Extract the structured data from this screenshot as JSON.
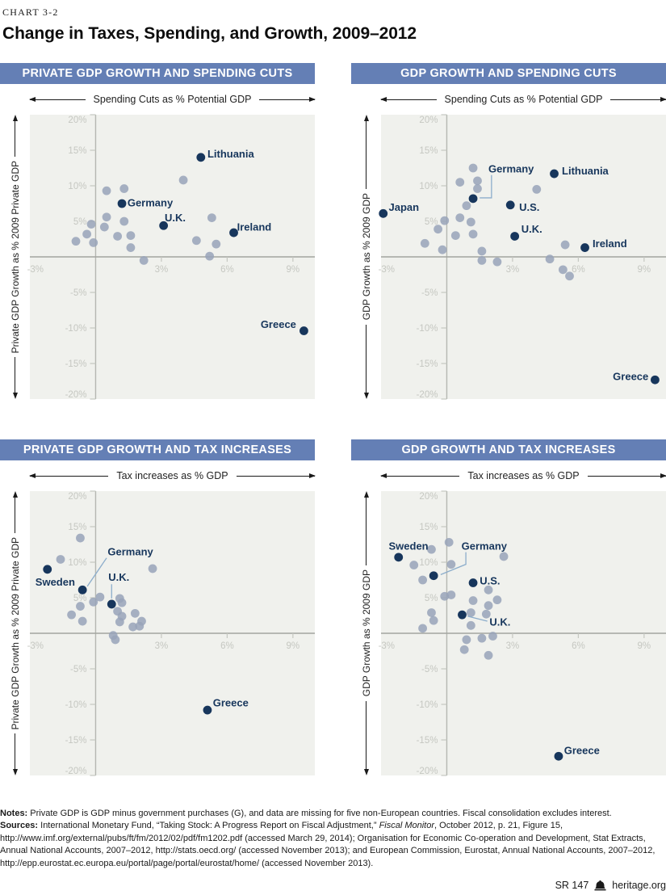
{
  "page": {
    "kicker": "CHART 3-2",
    "title": "Change in Taxes, Spending, and Growth, 2009–2012"
  },
  "colors": {
    "banner_blue": "#647fb5",
    "navy_point": "#17365c",
    "gray_point": "#98a3b8",
    "panel_bg": "#f0f1ed",
    "tick_label": "#c5c7c1",
    "x_axis_line": "#a3a5a0",
    "y_axis_line": "#b5b7b1",
    "leader_line": "#8cadcb",
    "arrow_black": "#1a1a1a"
  },
  "chart_data": [
    {
      "type": "scatter",
      "title": "PRIVATE GDP GROWTH AND SPENDING CUTS",
      "xlabel": "Spending Cuts as % Potential GDP",
      "ylabel": "Private GDP Growth as % 2009 Private GDP",
      "xlim": [
        -3,
        10
      ],
      "ylim": [
        -20,
        20
      ],
      "xticks": [
        {
          "v": -2.75,
          "label": "-3%",
          "tick": false
        },
        {
          "v": 3,
          "label": "3%",
          "tick": true
        },
        {
          "v": 6,
          "label": "6%",
          "tick": true
        },
        {
          "v": 9,
          "label": "9%",
          "tick": true
        }
      ],
      "yticks": [
        {
          "v": 20,
          "label": "20%"
        },
        {
          "v": 15,
          "label": "15%"
        },
        {
          "v": 10,
          "label": "10%"
        },
        {
          "v": 5,
          "label": "5%"
        },
        {
          "v": -5,
          "label": "-5%"
        },
        {
          "v": -10,
          "label": "-10%"
        },
        {
          "v": -15,
          "label": "-15%"
        },
        {
          "v": -20,
          "label": "-20%"
        }
      ],
      "labeled_points": [
        {
          "name": "Germany",
          "x": 1.2,
          "y": 7.5,
          "label_x": 1.45,
          "label_y": 7.6,
          "anchor": "start",
          "leader": null
        },
        {
          "name": "U.K.",
          "x": 3.1,
          "y": 4.4,
          "label_x": 3.15,
          "label_y": 5.5,
          "anchor": "start",
          "leader": null
        },
        {
          "name": "Lithuania",
          "x": 4.8,
          "y": 14.0,
          "label_x": 5.1,
          "label_y": 14.5,
          "anchor": "start",
          "leader": null
        },
        {
          "name": "Ireland",
          "x": 6.3,
          "y": 3.4,
          "label_x": 6.45,
          "label_y": 4.2,
          "anchor": "start",
          "leader": null
        },
        {
          "name": "Greece",
          "x": 9.5,
          "y": -10.4,
          "label_x": 9.15,
          "label_y": -9.5,
          "anchor": "end",
          "leader": null
        }
      ],
      "points": [
        [
          -0.9,
          2.2
        ],
        [
          -0.4,
          3.2
        ],
        [
          -0.2,
          4.6
        ],
        [
          -0.1,
          2.0
        ],
        [
          0.4,
          4.2
        ],
        [
          0.5,
          5.6
        ],
        [
          0.5,
          9.3
        ],
        [
          1.0,
          2.9
        ],
        [
          1.3,
          5.0
        ],
        [
          1.3,
          9.6
        ],
        [
          1.6,
          3.0
        ],
        [
          1.6,
          1.3
        ],
        [
          2.2,
          -0.5
        ],
        [
          4.0,
          10.8
        ],
        [
          4.6,
          2.3
        ],
        [
          5.2,
          0.1
        ],
        [
          5.3,
          5.5
        ],
        [
          5.5,
          1.8
        ]
      ]
    },
    {
      "type": "scatter",
      "title": "GDP GROWTH AND SPENDING CUTS",
      "xlabel": "Spending Cuts as % Potential GDP",
      "ylabel": "GDP Growth as % 2009 GDP",
      "xlim": [
        -3,
        10
      ],
      "ylim": [
        -20,
        20
      ],
      "xticks": [
        {
          "v": -2.75,
          "label": "-3%",
          "tick": false
        },
        {
          "v": 3,
          "label": "3%",
          "tick": true
        },
        {
          "v": 6,
          "label": "6%",
          "tick": true
        },
        {
          "v": 9,
          "label": "9%",
          "tick": true
        }
      ],
      "yticks": [
        {
          "v": 20,
          "label": "20%"
        },
        {
          "v": 15,
          "label": "15%"
        },
        {
          "v": 10,
          "label": "10%"
        },
        {
          "v": 5,
          "label": "5%"
        },
        {
          "v": -5,
          "label": "-5%"
        },
        {
          "v": -10,
          "label": "-10%"
        },
        {
          "v": -15,
          "label": "-15%"
        },
        {
          "v": -20,
          "label": "-20%"
        }
      ],
      "labeled_points": [
        {
          "name": "Japan",
          "x": -2.9,
          "y": 6.1,
          "label_x": -2.65,
          "label_y": 7.0,
          "anchor": "start",
          "leader": null
        },
        {
          "name": "Germany",
          "x": 1.2,
          "y": 8.2,
          "label_x": 1.9,
          "label_y": 12.4,
          "anchor": "start",
          "leader": [
            [
              2.04,
              11.5
            ],
            [
              2.04,
              8.3
            ],
            [
              1.5,
              8.3
            ]
          ]
        },
        {
          "name": "Lithuania",
          "x": 4.9,
          "y": 11.7,
          "label_x": 5.25,
          "label_y": 12.1,
          "anchor": "start",
          "leader": null
        },
        {
          "name": "U.S.",
          "x": 2.9,
          "y": 7.3,
          "label_x": 3.3,
          "label_y": 7.0,
          "anchor": "start",
          "leader": null
        },
        {
          "name": "U.K.",
          "x": 3.1,
          "y": 2.9,
          "label_x": 3.4,
          "label_y": 3.9,
          "anchor": "start",
          "leader": null
        },
        {
          "name": "Ireland",
          "x": 6.3,
          "y": 1.3,
          "label_x": 6.65,
          "label_y": 1.9,
          "anchor": "start",
          "leader": null
        },
        {
          "name": "Greece",
          "x": 9.5,
          "y": -17.3,
          "label_x": 9.2,
          "label_y": -16.8,
          "anchor": "end",
          "leader": null
        }
      ],
      "points": [
        [
          -1.0,
          1.9
        ],
        [
          -0.4,
          3.9
        ],
        [
          -0.2,
          1.0
        ],
        [
          -0.1,
          5.1
        ],
        [
          0.4,
          3.0
        ],
        [
          0.6,
          5.5
        ],
        [
          0.6,
          10.5
        ],
        [
          0.9,
          7.2
        ],
        [
          1.1,
          4.9
        ],
        [
          1.2,
          3.2
        ],
        [
          1.2,
          12.5
        ],
        [
          1.4,
          10.7
        ],
        [
          1.4,
          9.6
        ],
        [
          1.6,
          0.8
        ],
        [
          1.6,
          -0.5
        ],
        [
          2.3,
          -0.7
        ],
        [
          4.1,
          9.5
        ],
        [
          4.7,
          -0.3
        ],
        [
          5.4,
          1.7
        ],
        [
          5.3,
          -1.8
        ],
        [
          5.6,
          -2.7
        ]
      ]
    },
    {
      "type": "scatter",
      "title": "PRIVATE GDP GROWTH AND TAX INCREASES",
      "xlabel": "Tax increases as % GDP",
      "ylabel": "Private GDP Growth as % 2009 Private GDP",
      "xlim": [
        -3,
        10
      ],
      "ylim": [
        -20,
        20
      ],
      "xticks": [
        {
          "v": -2.75,
          "label": "-3%",
          "tick": false
        },
        {
          "v": 3,
          "label": "3%",
          "tick": true
        },
        {
          "v": 6,
          "label": "6%",
          "tick": true
        },
        {
          "v": 9,
          "label": "9%",
          "tick": true
        }
      ],
      "yticks": [
        {
          "v": 20,
          "label": "20%"
        },
        {
          "v": 15,
          "label": "15%"
        },
        {
          "v": 10,
          "label": "10%"
        },
        {
          "v": 5,
          "label": "5%"
        },
        {
          "v": -5,
          "label": "-5%"
        },
        {
          "v": -10,
          "label": "-10%"
        },
        {
          "v": -15,
          "label": "-15%"
        },
        {
          "v": -20,
          "label": "-20%"
        }
      ],
      "labeled_points": [
        {
          "name": "Sweden",
          "x": -2.2,
          "y": 9.0,
          "label_x": -2.75,
          "label_y": 7.2,
          "anchor": "start",
          "leader": null
        },
        {
          "name": "Germany",
          "x": -0.6,
          "y": 6.1,
          "label_x": 0.55,
          "label_y": 11.5,
          "anchor": "start",
          "leader": [
            [
              0.5,
              10.6
            ],
            [
              -0.38,
              6.6
            ]
          ]
        },
        {
          "name": "U.K.",
          "x": 0.73,
          "y": 4.1,
          "label_x": 0.58,
          "label_y": 7.9,
          "anchor": "start",
          "leader": [
            [
              0.73,
              6.9
            ],
            [
              0.73,
              4.9
            ]
          ]
        },
        {
          "name": "Greece",
          "x": 5.1,
          "y": -10.8,
          "label_x": 5.35,
          "label_y": -9.8,
          "anchor": "start",
          "leader": null
        }
      ],
      "points": [
        [
          -1.6,
          10.4
        ],
        [
          -1.1,
          2.6
        ],
        [
          -0.7,
          13.4
        ],
        [
          -0.7,
          3.8
        ],
        [
          -0.6,
          1.7
        ],
        [
          -0.1,
          4.4
        ],
        [
          0.2,
          5.1
        ],
        [
          0.8,
          -0.3
        ],
        [
          0.9,
          -0.9
        ],
        [
          1.0,
          3.1
        ],
        [
          1.1,
          4.9
        ],
        [
          1.2,
          4.3
        ],
        [
          1.1,
          1.6
        ],
        [
          1.2,
          2.4
        ],
        [
          1.7,
          0.9
        ],
        [
          1.8,
          2.8
        ],
        [
          2.0,
          1.0
        ],
        [
          2.1,
          1.7
        ],
        [
          2.6,
          9.1
        ]
      ]
    },
    {
      "type": "scatter",
      "title": "GDP GROWTH AND TAX INCREASES",
      "xlabel": "Tax increases as % GDP",
      "ylabel": "GDP Growth as % 2009 GDP",
      "xlim": [
        -3,
        10
      ],
      "ylim": [
        -20,
        20
      ],
      "xticks": [
        {
          "v": -2.75,
          "label": "-3%",
          "tick": false
        },
        {
          "v": 3,
          "label": "3%",
          "tick": true
        },
        {
          "v": 6,
          "label": "6%",
          "tick": true
        },
        {
          "v": 9,
          "label": "9%",
          "tick": true
        }
      ],
      "yticks": [
        {
          "v": 20,
          "label": "20%"
        },
        {
          "v": 15,
          "label": "15%"
        },
        {
          "v": 10,
          "label": "10%"
        },
        {
          "v": 5,
          "label": "5%"
        },
        {
          "v": -5,
          "label": "-5%"
        },
        {
          "v": -10,
          "label": "-10%"
        },
        {
          "v": -15,
          "label": "-15%"
        },
        {
          "v": -20,
          "label": "-20%"
        }
      ],
      "labeled_points": [
        {
          "name": "Sweden",
          "x": -2.2,
          "y": 10.7,
          "label_x": -2.65,
          "label_y": 12.3,
          "anchor": "start",
          "leader": null
        },
        {
          "name": "Germany",
          "x": -0.6,
          "y": 8.1,
          "label_x": 0.67,
          "label_y": 12.3,
          "anchor": "start",
          "leader": [
            [
              0.87,
              11.4
            ],
            [
              0.87,
              9.7
            ],
            [
              -0.28,
              8.25
            ]
          ]
        },
        {
          "name": "U.S.",
          "x": 1.2,
          "y": 7.1,
          "label_x": 1.5,
          "label_y": 7.4,
          "anchor": "start",
          "leader": null
        },
        {
          "name": "U.K.",
          "x": 0.7,
          "y": 2.6,
          "label_x": 1.95,
          "label_y": 1.6,
          "anchor": "start",
          "leader": [
            [
              1.85,
              1.7
            ],
            [
              0.95,
              2.4
            ]
          ]
        },
        {
          "name": "Greece",
          "x": 5.1,
          "y": -17.3,
          "label_x": 5.35,
          "label_y": -16.5,
          "anchor": "start",
          "leader": null
        }
      ],
      "points": [
        [
          -1.5,
          9.6
        ],
        [
          -1.1,
          7.5
        ],
        [
          -1.1,
          0.7
        ],
        [
          -0.7,
          11.8
        ],
        [
          -0.7,
          2.9
        ],
        [
          -0.6,
          1.8
        ],
        [
          -0.1,
          5.2
        ],
        [
          0.1,
          12.8
        ],
        [
          0.2,
          9.7
        ],
        [
          0.2,
          5.4
        ],
        [
          0.8,
          -2.3
        ],
        [
          0.9,
          -0.9
        ],
        [
          1.1,
          2.9
        ],
        [
          1.1,
          1.1
        ],
        [
          1.2,
          4.6
        ],
        [
          1.6,
          -0.7
        ],
        [
          1.8,
          2.7
        ],
        [
          1.9,
          6.1
        ],
        [
          1.9,
          3.9
        ],
        [
          1.9,
          -3.1
        ],
        [
          2.1,
          -0.4
        ],
        [
          2.3,
          4.7
        ],
        [
          2.6,
          10.8
        ]
      ]
    }
  ],
  "notes": {
    "notes_label": "Notes:",
    "notes_text": " Private GDP is GDP minus government purchases (G), and data are missing for five non-European countries. Fiscal consolidation excludes interest. ",
    "sources_label": "Sources:",
    "sources_text_1": " International Monetary Fund, “Taking Stock: A Progress Report on Fiscal Adjustment,” ",
    "sources_italic": "Fiscal Monitor",
    "sources_text_2": ", October 2012, p. 21, Figure 15, http://www.imf.org/external/pubs/ft/fm/2012/02/pdf/fm1202.pdf (accessed March 29, 2014); Organisation for Economic Co-operation and Development, Stat Extracts, Annual National Accounts, 2007–2012, http://stats.oecd.org/ (accessed November 2013); and European Commission, Eurostat, Annual National Accounts, 2007–2012, http://epp.eurostat.ec.europa.eu/portal/page/portal/eurostat/home/ (accessed November 2013)."
  },
  "footer": {
    "report_id": "SR 147",
    "logo_icon": "liberty-bell",
    "site": "heritage.org"
  }
}
